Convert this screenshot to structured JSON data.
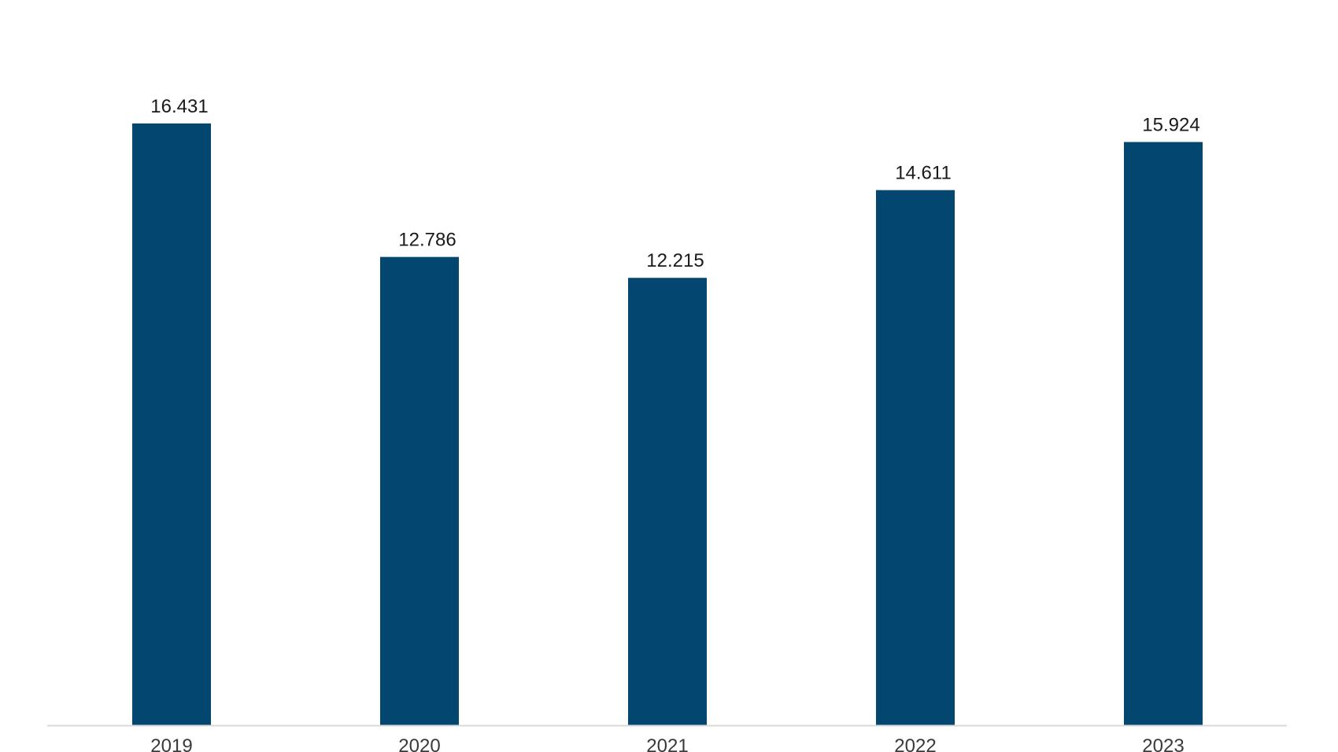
{
  "chart_data": {
    "type": "bar",
    "categories": [
      "2019",
      "2020",
      "2021",
      "2022",
      "2023"
    ],
    "values": [
      16.431,
      12.786,
      12.215,
      14.611,
      15.924
    ],
    "data_labels": [
      "16.431",
      "12.786",
      "12.215",
      "14.611",
      "15.924"
    ],
    "ylim": [
      0,
      19.2
    ],
    "grid": false,
    "colors": {
      "bar": "#03466f",
      "axis": "#d9d9d9"
    }
  }
}
